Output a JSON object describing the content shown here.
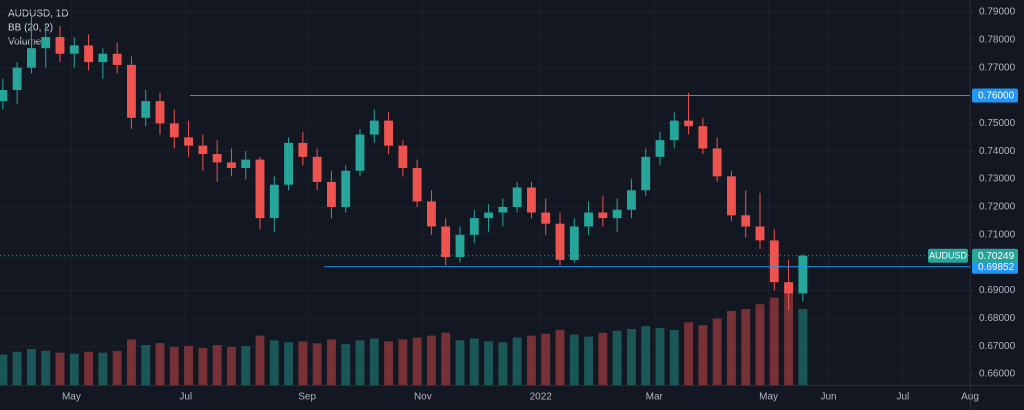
{
  "chart_data": {
    "type": "candlestick",
    "title": "AUDUSD, 1D",
    "indicators": [
      "BB (20, 2)",
      "Volume"
    ],
    "candles": {
      "open": [
        0.758,
        0.762,
        0.77,
        0.777,
        0.781,
        0.775,
        0.778,
        0.772,
        0.775,
        0.771,
        0.752,
        0.758,
        0.75,
        0.745,
        0.742,
        0.739,
        0.736,
        0.734,
        0.737,
        0.716,
        0.728,
        0.743,
        0.738,
        0.729,
        0.72,
        0.733,
        0.746,
        0.751,
        0.742,
        0.734,
        0.722,
        0.713,
        0.702,
        0.71,
        0.716,
        0.718,
        0.72,
        0.727,
        0.718,
        0.714,
        0.701,
        0.713,
        0.718,
        0.716,
        0.719,
        0.726,
        0.738,
        0.744,
        0.751,
        0.749,
        0.741,
        0.731,
        0.717,
        0.713,
        0.708,
        0.693,
        0.689
      ],
      "high": [
        0.766,
        0.772,
        0.789,
        0.786,
        0.785,
        0.781,
        0.782,
        0.777,
        0.779,
        0.774,
        0.762,
        0.761,
        0.755,
        0.751,
        0.746,
        0.744,
        0.741,
        0.74,
        0.738,
        0.731,
        0.745,
        0.747,
        0.741,
        0.733,
        0.735,
        0.748,
        0.755,
        0.754,
        0.744,
        0.737,
        0.726,
        0.716,
        0.713,
        0.719,
        0.721,
        0.723,
        0.729,
        0.729,
        0.723,
        0.718,
        0.716,
        0.722,
        0.724,
        0.723,
        0.73,
        0.741,
        0.747,
        0.754,
        0.761,
        0.752,
        0.745,
        0.733,
        0.726,
        0.725,
        0.712,
        0.701,
        0.703
      ],
      "low": [
        0.755,
        0.757,
        0.768,
        0.77,
        0.772,
        0.77,
        0.769,
        0.766,
        0.768,
        0.748,
        0.749,
        0.746,
        0.741,
        0.738,
        0.733,
        0.729,
        0.731,
        0.73,
        0.712,
        0.711,
        0.726,
        0.735,
        0.726,
        0.716,
        0.718,
        0.731,
        0.743,
        0.739,
        0.731,
        0.72,
        0.71,
        0.699,
        0.7,
        0.707,
        0.711,
        0.713,
        0.718,
        0.716,
        0.71,
        0.699,
        0.7,
        0.71,
        0.713,
        0.711,
        0.716,
        0.724,
        0.735,
        0.741,
        0.746,
        0.739,
        0.729,
        0.715,
        0.709,
        0.705,
        0.69,
        0.683,
        0.686
      ],
      "close": [
        0.762,
        0.77,
        0.777,
        0.781,
        0.775,
        0.778,
        0.772,
        0.775,
        0.771,
        0.752,
        0.758,
        0.75,
        0.745,
        0.742,
        0.739,
        0.736,
        0.734,
        0.737,
        0.716,
        0.728,
        0.743,
        0.738,
        0.729,
        0.72,
        0.733,
        0.746,
        0.751,
        0.742,
        0.734,
        0.722,
        0.713,
        0.702,
        0.71,
        0.716,
        0.718,
        0.72,
        0.727,
        0.718,
        0.714,
        0.701,
        0.713,
        0.718,
        0.716,
        0.719,
        0.726,
        0.738,
        0.744,
        0.751,
        0.749,
        0.741,
        0.731,
        0.717,
        0.713,
        0.708,
        0.693,
        0.689,
        0.70249
      ]
    },
    "volume": [
      32,
      35,
      38,
      36,
      34,
      33,
      35,
      34,
      36,
      48,
      42,
      44,
      40,
      41,
      39,
      42,
      40,
      41,
      52,
      47,
      45,
      46,
      44,
      48,
      43,
      47,
      49,
      46,
      48,
      50,
      52,
      55,
      47,
      49,
      46,
      45,
      50,
      52,
      54,
      58,
      53,
      51,
      55,
      57,
      59,
      62,
      60,
      58,
      66,
      63,
      70,
      78,
      80,
      85,
      92,
      100,
      80
    ],
    "xlim": [
      -0.2,
      67.7
    ],
    "xticks": [
      {
        "value": 4.8,
        "label": "May"
      },
      {
        "value": 12.8,
        "label": "Jul"
      },
      {
        "value": 21.3,
        "label": "Sep"
      },
      {
        "value": 29.4,
        "label": "Nov"
      },
      {
        "value": 37.65,
        "label": "2022"
      },
      {
        "value": 45.6,
        "label": "Mar"
      },
      {
        "value": 53.6,
        "label": "May"
      },
      {
        "value": 57.8,
        "label": "Jun"
      },
      {
        "value": 63,
        "label": "Jul"
      },
      {
        "value": 67.7,
        "label": "Aug"
      }
    ],
    "ylim": [
      0.6507,
      0.7943
    ],
    "yticks": [
      {
        "value": 0.79,
        "label": "0.79000"
      },
      {
        "value": 0.78,
        "label": "0.78000"
      },
      {
        "value": 0.77,
        "label": "0.77000"
      },
      {
        "value": 0.75,
        "label": "0.75000"
      },
      {
        "value": 0.74,
        "label": "0.74000"
      },
      {
        "value": 0.73,
        "label": "0.73000"
      },
      {
        "value": 0.72,
        "label": "0.72000"
      },
      {
        "value": 0.71,
        "label": "0.71000"
      },
      {
        "value": 0.69,
        "label": "0.69000"
      },
      {
        "value": 0.68,
        "label": "0.68000"
      },
      {
        "value": 0.67,
        "label": "0.67000"
      },
      {
        "value": 0.66,
        "label": "0.66000"
      }
    ],
    "up_color": "#26a69a",
    "down_color": "#ef5350",
    "levels": [
      {
        "value": 0.76,
        "label": "0.76000",
        "start": 13.1,
        "color": "#2196f3"
      },
      {
        "value": 0.69852,
        "label": "0.69852",
        "start": 22.5,
        "color": "#2196f3"
      }
    ],
    "last_price": {
      "symbol": "AUDUSD",
      "value": 0.70249,
      "label": "0.70249",
      "color": "#26a69a"
    }
  }
}
